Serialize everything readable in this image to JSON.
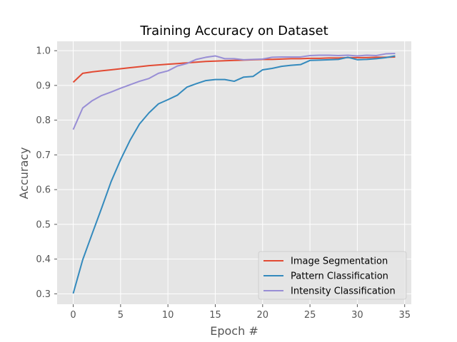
{
  "chart_data": {
    "type": "line",
    "title": "Training Accuracy on Dataset",
    "xlabel": "Epoch #",
    "ylabel": "Accuracy",
    "xlim": [
      -1.7,
      35.7
    ],
    "ylim": [
      0.27,
      1.027
    ],
    "xticks": [
      0,
      5,
      10,
      15,
      20,
      25,
      30,
      35
    ],
    "yticks": [
      0.3,
      0.4,
      0.5,
      0.6,
      0.7,
      0.8,
      0.9,
      1.0
    ],
    "xtick_labels": [
      "0",
      "5",
      "10",
      "15",
      "20",
      "25",
      "30",
      "35"
    ],
    "ytick_labels": [
      "0.3",
      "0.4",
      "0.5",
      "0.6",
      "0.7",
      "0.8",
      "0.9",
      "1.0"
    ],
    "grid": true,
    "background": "#e5e5e5",
    "legend_position": "lower-right",
    "x": [
      0,
      1,
      2,
      3,
      4,
      5,
      6,
      7,
      8,
      9,
      10,
      11,
      12,
      13,
      14,
      15,
      16,
      17,
      18,
      19,
      20,
      21,
      22,
      23,
      24,
      25,
      26,
      27,
      28,
      29,
      30,
      31,
      32,
      33,
      34
    ],
    "series": [
      {
        "name": "Image Segmentation",
        "color": "#e24a33",
        "values": [
          0.909,
          0.935,
          0.939,
          0.942,
          0.945,
          0.948,
          0.951,
          0.954,
          0.957,
          0.959,
          0.961,
          0.963,
          0.965,
          0.967,
          0.969,
          0.97,
          0.971,
          0.972,
          0.973,
          0.974,
          0.975,
          0.975,
          0.976,
          0.977,
          0.977,
          0.978,
          0.978,
          0.979,
          0.979,
          0.98,
          0.98,
          0.98,
          0.981,
          0.981,
          0.982
        ]
      },
      {
        "name": "Pattern Classification",
        "color": "#348abd",
        "values": [
          0.301,
          0.398,
          0.473,
          0.547,
          0.623,
          0.686,
          0.742,
          0.789,
          0.821,
          0.847,
          0.859,
          0.872,
          0.895,
          0.905,
          0.914,
          0.917,
          0.917,
          0.912,
          0.924,
          0.926,
          0.945,
          0.949,
          0.955,
          0.958,
          0.96,
          0.972,
          0.973,
          0.974,
          0.975,
          0.981,
          0.974,
          0.975,
          0.977,
          0.98,
          0.985
        ]
      },
      {
        "name": "Intensity Classification",
        "color": "#988ed5",
        "values": [
          0.773,
          0.835,
          0.856,
          0.871,
          0.881,
          0.892,
          0.902,
          0.912,
          0.92,
          0.935,
          0.942,
          0.956,
          0.963,
          0.975,
          0.981,
          0.985,
          0.977,
          0.977,
          0.974,
          0.975,
          0.976,
          0.981,
          0.982,
          0.982,
          0.982,
          0.986,
          0.987,
          0.987,
          0.986,
          0.987,
          0.985,
          0.987,
          0.986,
          0.991,
          0.992
        ]
      }
    ]
  }
}
